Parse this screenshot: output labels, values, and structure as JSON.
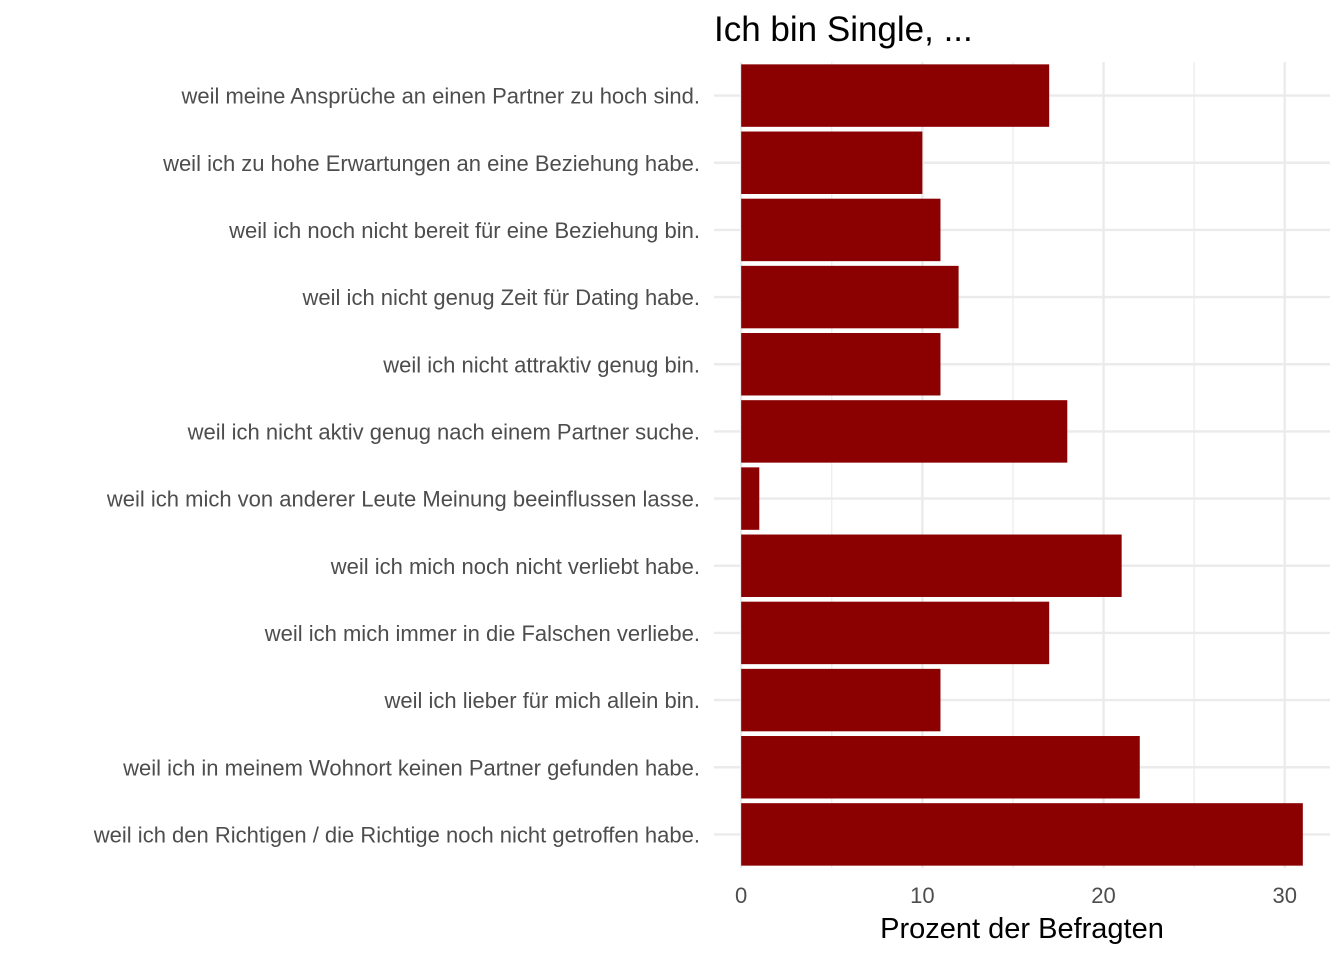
{
  "chart_data": {
    "type": "bar",
    "orientation": "horizontal",
    "title": "Ich bin Single, ...",
    "xlabel": "Prozent der Befragten",
    "ylabel": "",
    "categories": [
      "weil meine Ansprüche an einen Partner zu hoch sind.",
      "weil ich zu hohe Erwartungen an eine Beziehung habe.",
      "weil ich noch nicht bereit für eine Beziehung bin.",
      "weil ich nicht genug Zeit für Dating habe.",
      "weil ich nicht attraktiv genug bin.",
      "weil ich nicht aktiv genug nach einem Partner suche.",
      "weil ich mich von anderer Leute Meinung beeinflussen lasse.",
      "weil ich mich noch nicht verliebt habe.",
      "weil ich mich immer in die Falschen verliebe.",
      "weil ich lieber für mich allein bin.",
      "weil ich in meinem Wohnort keinen Partner gefunden habe.",
      "weil ich den Richtigen / die Richtige noch nicht getroffen habe."
    ],
    "values": [
      17,
      10,
      11,
      12,
      11,
      18,
      1,
      21,
      17,
      11,
      22,
      31
    ],
    "xlim": [
      -1.5,
      32.5
    ],
    "xticks": [
      0,
      10,
      20,
      30
    ],
    "xtick_labels": [
      "0",
      "10",
      "20",
      "30"
    ],
    "grid": true,
    "bar_color": "#8B0000",
    "grid_color": "#EBEBEB"
  }
}
